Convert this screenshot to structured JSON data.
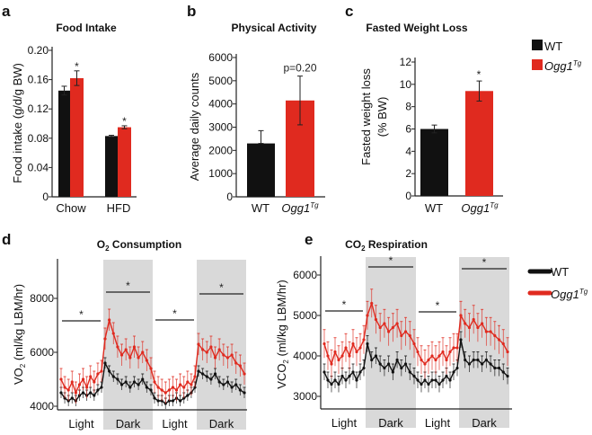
{
  "colors": {
    "wt": "#111111",
    "ogg1": "#e02a1f",
    "shade": "#d9d9d9",
    "axis": "#222222"
  },
  "legend_top": [
    {
      "name": "WT",
      "superscript": ""
    },
    {
      "name": "Ogg1",
      "superscript": "Tg"
    }
  ],
  "legend_bottom": [
    {
      "name": "WT",
      "superscript": ""
    },
    {
      "name": "Ogg1",
      "superscript": "Tg"
    }
  ],
  "chart_data": [
    {
      "panel": "a",
      "type": "bar",
      "title": "Food Intake",
      "ylabel": "Food intake (g/d/g BW)",
      "ylim": [
        0,
        0.2
      ],
      "yticks": [
        "0",
        "0.04",
        "0.08",
        "0.12",
        "0.16",
        "0.20"
      ],
      "categories": [
        "Chow",
        "HFD"
      ],
      "series": [
        {
          "name": "WT",
          "values": [
            0.145,
            0.083
          ],
          "errors": [
            0.006,
            0.001
          ]
        },
        {
          "name": "Ogg1Tg",
          "values": [
            0.162,
            0.095
          ],
          "errors": [
            0.01,
            0.002
          ]
        }
      ],
      "annotations": [
        {
          "category": "Chow",
          "series": "Ogg1Tg",
          "text": "*"
        },
        {
          "category": "HFD",
          "series": "Ogg1Tg",
          "text": "*"
        }
      ]
    },
    {
      "panel": "b",
      "type": "bar",
      "title": "Physical Activity",
      "ylabel": "Average daily counts",
      "ylim": [
        0,
        6000
      ],
      "yticks": [
        "0",
        "1000",
        "2000",
        "3000",
        "4000",
        "5000",
        "6000"
      ],
      "categories": [
        {
          "name": "WT",
          "superscript": ""
        },
        {
          "name": "Ogg1",
          "superscript": "Tg"
        }
      ],
      "values": [
        2300,
        4150
      ],
      "errors": [
        550,
        1050
      ],
      "annotations": [
        {
          "category": "Ogg1Tg",
          "text": "p=0.20"
        }
      ]
    },
    {
      "panel": "c",
      "type": "bar",
      "title": "Fasted Weight Loss",
      "ylabel": [
        "Fasted weight loss",
        "(% BW)"
      ],
      "ylim": [
        0,
        12
      ],
      "yticks": [
        "0",
        "2",
        "4",
        "6",
        "8",
        "10",
        "12"
      ],
      "categories": [
        {
          "name": "WT",
          "superscript": ""
        },
        {
          "name": "Ogg1",
          "superscript": "Tg"
        }
      ],
      "values": [
        6.0,
        9.4
      ],
      "errors": [
        0.35,
        0.9
      ],
      "annotations": [
        {
          "category": "Ogg1Tg",
          "text": "*"
        }
      ]
    },
    {
      "panel": "d",
      "type": "line",
      "title": {
        "main": "O",
        "sub": "2",
        "rest": " Consumption"
      },
      "ylabel": {
        "main": "VO",
        "sub": "2",
        "rest": " (ml/kg LBM/hr)"
      },
      "yticks": [
        "4000",
        "6000",
        "8000"
      ],
      "phases": [
        "Light",
        "Dark",
        "Light",
        "Dark"
      ],
      "shaded_phases": [
        "Dark"
      ],
      "significance": [
        "*",
        "*",
        "*",
        "*"
      ],
      "series": [
        {
          "name": "WT",
          "error": 200,
          "values": [
            4500,
            4300,
            4200,
            4300,
            4200,
            4400,
            4500,
            4400,
            4500,
            4400,
            4600,
            4700,
            5600,
            5300,
            5100,
            5000,
            4800,
            4900,
            4700,
            4900,
            4800,
            5000,
            4700,
            4600,
            4300,
            4200,
            4200,
            4100,
            4200,
            4200,
            4300,
            4200,
            4300,
            4400,
            4500,
            4700,
            5300,
            5200,
            5100,
            5000,
            5200,
            4900,
            4800,
            4900,
            4700,
            4800,
            4600,
            4500
          ]
        },
        {
          "name": "Ogg1Tg",
          "error": 400,
          "values": [
            5000,
            4700,
            4600,
            4900,
            4500,
            4800,
            5000,
            4700,
            5100,
            4900,
            5200,
            5300,
            6500,
            7200,
            6700,
            6200,
            5900,
            6100,
            5800,
            6200,
            5800,
            6000,
            5700,
            5400,
            4900,
            4700,
            4600,
            4500,
            4600,
            4700,
            4600,
            4800,
            4700,
            4900,
            4800,
            5100,
            6300,
            6100,
            6000,
            6200,
            5800,
            6100,
            5900,
            5800,
            5900,
            5600,
            5500,
            5200
          ]
        }
      ]
    },
    {
      "panel": "e",
      "type": "line",
      "title": {
        "main": "CO",
        "sub": "2",
        "rest": " Respiration"
      },
      "ylabel": {
        "main": "VCO",
        "sub": "2",
        "rest": " (ml/kg LBM/hr)"
      },
      "yticks": [
        "3000",
        "4000",
        "5000",
        "6000"
      ],
      "phases": [
        "Light",
        "Dark",
        "Light",
        "Dark"
      ],
      "shaded_phases": [
        "Dark"
      ],
      "significance": [
        "*",
        "*",
        "*",
        "*"
      ],
      "series": [
        {
          "name": "WT",
          "error": 200,
          "values": [
            3600,
            3400,
            3300,
            3400,
            3300,
            3500,
            3400,
            3500,
            3600,
            3400,
            3600,
            3700,
            4300,
            3900,
            4000,
            3800,
            3700,
            3800,
            3600,
            3900,
            3700,
            3800,
            3600,
            3500,
            3400,
            3300,
            3400,
            3300,
            3400,
            3400,
            3300,
            3400,
            3500,
            3400,
            3600,
            3700,
            4400,
            3900,
            3800,
            3900,
            3900,
            3800,
            3900,
            3800,
            3700,
            3700,
            3600,
            3500
          ]
        },
        {
          "name": "Ogg1Tg",
          "error": 350,
          "values": [
            4300,
            4000,
            3800,
            4100,
            3900,
            4000,
            4200,
            4000,
            4300,
            4100,
            4200,
            4400,
            5000,
            5300,
            4900,
            4700,
            4800,
            4600,
            4700,
            4800,
            4500,
            4600,
            4500,
            4300,
            4100,
            3900,
            3800,
            3900,
            4000,
            3900,
            4000,
            4100,
            3900,
            4100,
            4200,
            4200,
            5000,
            4800,
            4700,
            4900,
            4700,
            4800,
            4600,
            4600,
            4500,
            4400,
            4300,
            4100
          ]
        }
      ]
    }
  ],
  "panel_labels": [
    "a",
    "b",
    "c",
    "d",
    "e"
  ]
}
